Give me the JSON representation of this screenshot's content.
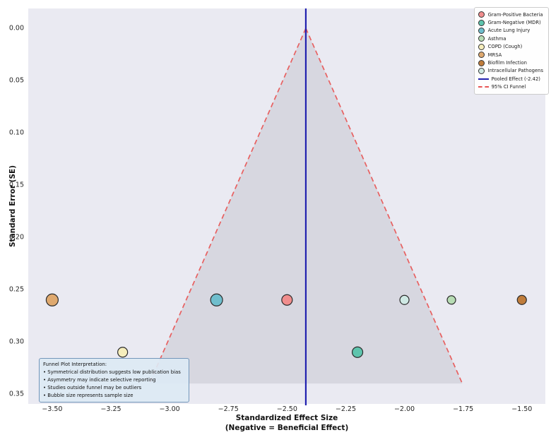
{
  "axes": {
    "y_label": "Standard Error (SE)",
    "x_label_line1": "Standardized Effect Size",
    "x_label_line2": "(Negative = Beneficial Effect)",
    "y_ticks": [
      {
        "value": 0.0,
        "label": "0.00"
      },
      {
        "value": 0.05,
        "label": "0.05"
      },
      {
        "value": 0.1,
        "label": "0.10"
      },
      {
        "value": 0.15,
        "label": "0.15"
      },
      {
        "value": 0.2,
        "label": "0.20"
      },
      {
        "value": 0.25,
        "label": "0.25"
      },
      {
        "value": 0.3,
        "label": "0.30"
      },
      {
        "value": 0.35,
        "label": "0.35"
      }
    ],
    "x_ticks": [
      {
        "value": -3.5,
        "label": "−3.50"
      },
      {
        "value": -3.25,
        "label": "−3.25"
      },
      {
        "value": -3.0,
        "label": "−3.00"
      },
      {
        "value": -2.75,
        "label": "−2.75"
      },
      {
        "value": -2.5,
        "label": "−2.50"
      },
      {
        "value": -2.25,
        "label": "−2.25"
      },
      {
        "value": -2.0,
        "label": "−2.00"
      },
      {
        "value": -1.75,
        "label": "−1.75"
      },
      {
        "value": -1.5,
        "label": "−1.50"
      }
    ]
  },
  "legend": {
    "items": [
      {
        "label": "Gram-Positive Bacteria",
        "type": "circle",
        "color": "#f08d8d"
      },
      {
        "label": "Gram-Negative (MDR)",
        "type": "circle",
        "color": "#5ec4ad"
      },
      {
        "label": "Acute Lung Injury",
        "type": "circle",
        "color": "#6fbecd"
      },
      {
        "label": "Asthma",
        "type": "circle",
        "color": "#b7dcb4"
      },
      {
        "label": "COPD (Cough)",
        "type": "circle",
        "color": "#f6eebc"
      },
      {
        "label": "MRSA",
        "type": "circle",
        "color": "#dfa96f"
      },
      {
        "label": "Biofilm Infection",
        "type": "circle",
        "color": "#c07d3c"
      },
      {
        "label": "Intracellular Pathogens",
        "type": "circle",
        "color": "#cfe9e4"
      },
      {
        "label": "Pooled Effect (-2.42)",
        "type": "line",
        "color": "#2121af"
      },
      {
        "label": "95% CI Funnel",
        "type": "dashed",
        "color": "#e85555"
      }
    ]
  },
  "note": {
    "title": "Funnel Plot Interpretation:",
    "bullets": [
      "Symmetrical distribution suggests low publication bias",
      "Asymmetry may indicate selective reporting",
      "Studies outside funnel may be outliers",
      "Bubble size represents sample size"
    ]
  },
  "chart_data": {
    "type": "scatter",
    "subtype": "funnel-plot",
    "xlabel": "Standardized Effect Size (Negative = Beneficial Effect)",
    "ylabel": "Standard Error (SE)",
    "xlim": [
      -3.602,
      -1.4
    ],
    "ylim_top_to_bottom": [
      -0.019,
      0.3595
    ],
    "grid": false,
    "plot_background": "#eaeaf2",
    "legend_position": "upper right",
    "pooled_effect": -2.42,
    "pooled_line_color": "#2121af",
    "funnel": {
      "apex_x": -2.42,
      "apex_se": 0.0,
      "max_se": 0.34,
      "ci_multiplier": 1.96,
      "line_color": "#e86060",
      "fill_color": "rgba(120,120,128,0.16)"
    },
    "points": [
      {
        "label": "MRSA",
        "x": -3.5,
        "se": 0.26,
        "diameter": 17,
        "color": "#dfa96f"
      },
      {
        "label": "COPD (Cough)",
        "x": -3.2,
        "se": 0.31,
        "diameter": 14,
        "color": "#f6eebc"
      },
      {
        "label": "Acute Lung Injury",
        "x": -2.8,
        "se": 0.26,
        "diameter": 17,
        "color": "#6fbecd"
      },
      {
        "label": "Gram-Positive Bacteria",
        "x": -2.5,
        "se": 0.26,
        "diameter": 15,
        "color": "#f08d8d"
      },
      {
        "label": "Gram-Negative (MDR)",
        "x": -2.2,
        "se": 0.31,
        "diameter": 15,
        "color": "#5ec4ad"
      },
      {
        "label": "Intracellular Pathogens",
        "x": -2.0,
        "se": 0.26,
        "diameter": 13,
        "color": "#cfe9e4"
      },
      {
        "label": "Asthma",
        "x": -1.8,
        "se": 0.26,
        "diameter": 12,
        "color": "#b7dcb4"
      },
      {
        "label": "Biofilm Infection",
        "x": -1.5,
        "se": 0.26,
        "diameter": 13,
        "color": "#c07d3c"
      }
    ]
  }
}
